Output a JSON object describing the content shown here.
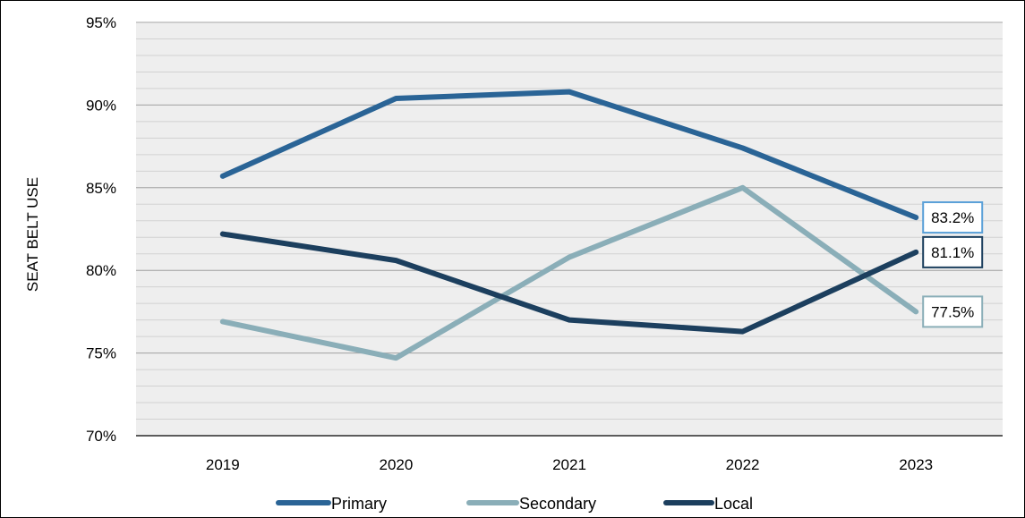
{
  "chart_data": {
    "type": "line",
    "title": "",
    "xlabel": "",
    "ylabel": "SEAT BELT USE",
    "categories": [
      "2019",
      "2020",
      "2021",
      "2022",
      "2023"
    ],
    "ylim": [
      0.7,
      0.95
    ],
    "yticks": [
      0.7,
      0.75,
      0.8,
      0.85,
      0.9,
      0.95
    ],
    "ytick_labels": [
      "70%",
      "75%",
      "80%",
      "85%",
      "90%",
      "95%"
    ],
    "minor_gridline_step": 0.01,
    "grid": true,
    "plot_background": "#eeeeee",
    "legend_position": "bottom",
    "series": [
      {
        "name": "Primary",
        "color": "#2a6496",
        "values": [
          0.857,
          0.904,
          0.908,
          0.874,
          0.832
        ],
        "end_label": "83.2%",
        "end_label_border": "#5aa0d8"
      },
      {
        "name": "Secondary",
        "color": "#8aaeb8",
        "values": [
          0.769,
          0.747,
          0.808,
          0.85,
          0.775
        ],
        "end_label": "77.5%",
        "end_label_border": "#8aaeb8"
      },
      {
        "name": "Local",
        "color": "#1c3f5e",
        "values": [
          0.822,
          0.806,
          0.77,
          0.763,
          0.811
        ],
        "end_label": "81.1%",
        "end_label_border": "#1c3f5e"
      }
    ]
  }
}
